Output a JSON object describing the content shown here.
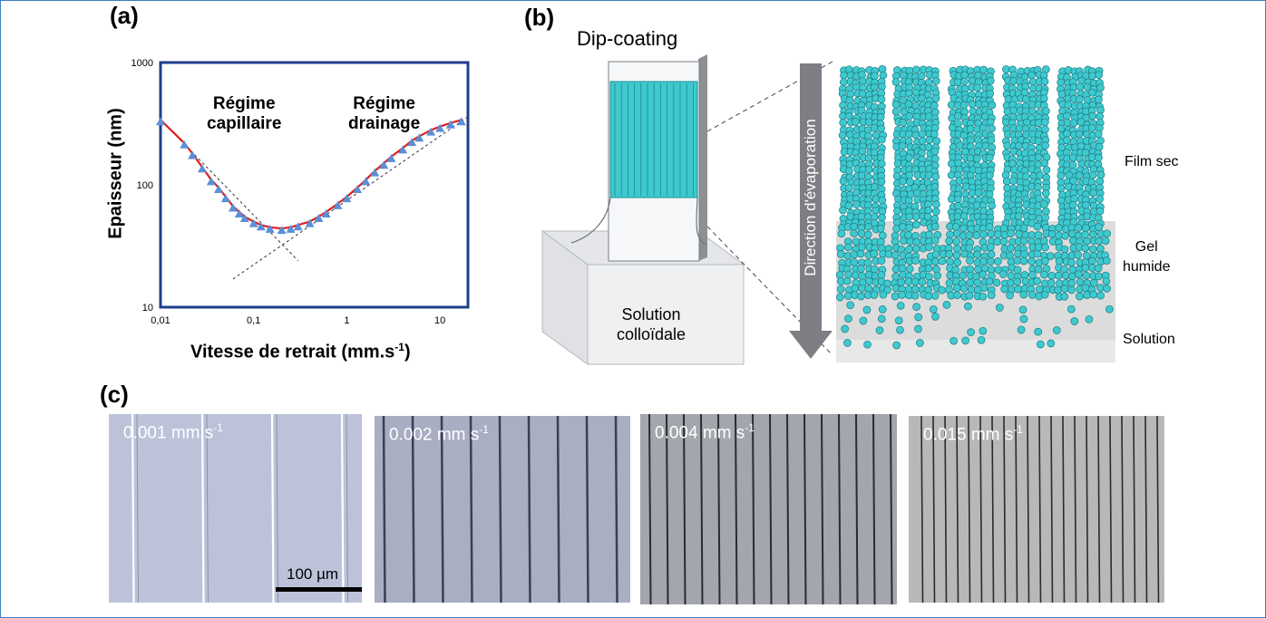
{
  "panel_a": {
    "label": "(a)",
    "ylabel": "Epaisseur (nm)",
    "xlabel": "Vitesse de retrait (mm.s",
    "xlabel_sup": "-1",
    "xlabel_end": ")",
    "regime_left_line1": "Régime",
    "regime_left_line2": "capillaire",
    "regime_right_line1": "Régime",
    "regime_right_line2": "drainage",
    "y_ticks": [
      "1000",
      "100",
      "10"
    ],
    "x_ticks": [
      "0,01",
      "0,1",
      "1",
      "10"
    ],
    "chart_data": {
      "type": "scatter",
      "x_scale": "log",
      "y_scale": "log",
      "xlim": [
        0.01,
        20
      ],
      "ylim": [
        10,
        1000
      ],
      "points": [
        [
          0.01,
          340
        ],
        [
          0.018,
          220
        ],
        [
          0.022,
          180
        ],
        [
          0.028,
          140
        ],
        [
          0.035,
          110
        ],
        [
          0.042,
          95
        ],
        [
          0.05,
          80
        ],
        [
          0.06,
          67
        ],
        [
          0.07,
          60
        ],
        [
          0.08,
          55
        ],
        [
          0.1,
          50
        ],
        [
          0.12,
          47
        ],
        [
          0.15,
          45
        ],
        [
          0.2,
          44
        ],
        [
          0.25,
          45
        ],
        [
          0.3,
          47
        ],
        [
          0.4,
          50
        ],
        [
          0.5,
          55
        ],
        [
          0.6,
          60
        ],
        [
          0.8,
          70
        ],
        [
          1.0,
          80
        ],
        [
          1.3,
          95
        ],
        [
          1.6,
          110
        ],
        [
          2.0,
          130
        ],
        [
          2.5,
          150
        ],
        [
          3.0,
          170
        ],
        [
          4.0,
          200
        ],
        [
          5.0,
          230
        ],
        [
          6.0,
          250
        ],
        [
          8.0,
          280
        ],
        [
          10.0,
          300
        ],
        [
          13.0,
          320
        ],
        [
          17.0,
          340
        ]
      ],
      "fit_line_color": "#e02020",
      "marker_color": "#5b8fd6"
    }
  },
  "panel_b": {
    "label": "(b)",
    "title": "Dip-coating",
    "solution_line1": "Solution",
    "solution_line2": "colloïdale",
    "arrow_label": "Direction d'évaporation",
    "zone_film": "Film sec",
    "zone_gel_line1": "Gel",
    "zone_gel_line2": "humide",
    "zone_solution": "Solution",
    "particle_color": "#3ec9cf"
  },
  "panel_c": {
    "label": "(c)",
    "images": [
      {
        "speed": "0.001 mm s",
        "sup": "-1"
      },
      {
        "speed": "0.002 mm s",
        "sup": "-1"
      },
      {
        "speed": "0.004 mm s",
        "sup": "-1"
      },
      {
        "speed": "0.015 mm s",
        "sup": "-1"
      }
    ],
    "scale_bar": "100 µm"
  }
}
